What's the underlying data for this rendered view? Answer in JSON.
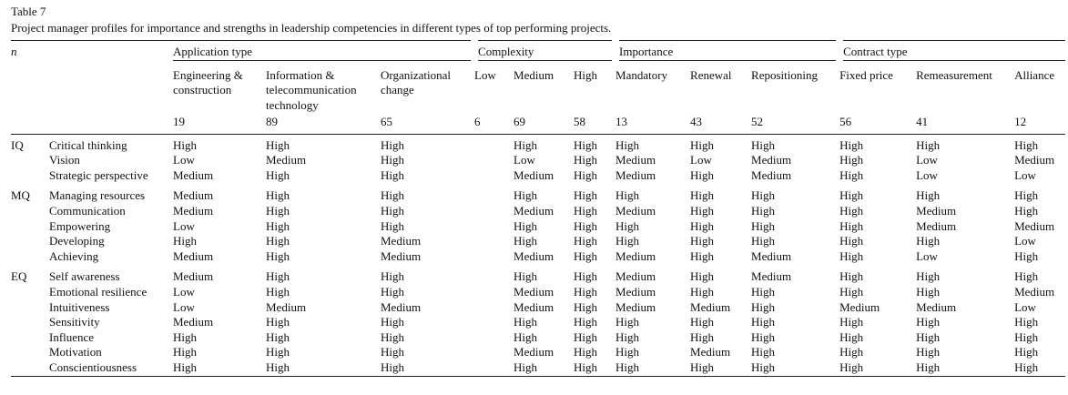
{
  "table_label": "Table 7",
  "caption": "Project manager profiles for importance and strengths in leadership competencies in different types of top performing projects.",
  "n_label": "n",
  "groups": [
    {
      "label": "Application type",
      "columns": [
        {
          "label": "Engineering & construction",
          "n": "19"
        },
        {
          "label": "Information & telecommunication technology",
          "n": "89"
        },
        {
          "label": "Organizational change",
          "n": "65"
        }
      ]
    },
    {
      "label": "Complexity",
      "columns": [
        {
          "label": "Low",
          "n": "6"
        },
        {
          "label": "Medium",
          "n": "69"
        },
        {
          "label": "High",
          "n": "58"
        }
      ]
    },
    {
      "label": "Importance",
      "columns": [
        {
          "label": "Mandatory",
          "n": "13"
        },
        {
          "label": "Renewal",
          "n": "43"
        },
        {
          "label": "Repositioning",
          "n": "52"
        }
      ]
    },
    {
      "label": "Contract type",
      "columns": [
        {
          "label": "Fixed price",
          "n": "56"
        },
        {
          "label": "Remeasurement",
          "n": "41"
        },
        {
          "label": "Alliance",
          "n": "12"
        }
      ]
    }
  ],
  "sections": [
    {
      "label": "IQ",
      "rows": [
        {
          "competency": "Critical thinking",
          "values": [
            "High",
            "High",
            "High",
            "",
            "High",
            "High",
            "High",
            "High",
            "High",
            "High",
            "High",
            "High"
          ]
        },
        {
          "competency": "Vision",
          "values": [
            "Low",
            "Medium",
            "High",
            "",
            "Low",
            "High",
            "Medium",
            "Low",
            "Medium",
            "High",
            "Low",
            "Medium"
          ]
        },
        {
          "competency": "Strategic perspective",
          "values": [
            "Medium",
            "High",
            "High",
            "",
            "Medium",
            "High",
            "Medium",
            "High",
            "Medium",
            "High",
            "Low",
            "Low"
          ]
        }
      ]
    },
    {
      "label": "MQ",
      "rows": [
        {
          "competency": "Managing resources",
          "values": [
            "Medium",
            "High",
            "High",
            "",
            "High",
            "High",
            "High",
            "High",
            "High",
            "High",
            "High",
            "High"
          ]
        },
        {
          "competency": "Communication",
          "values": [
            "Medium",
            "High",
            "High",
            "",
            "Medium",
            "High",
            "Medium",
            "High",
            "High",
            "High",
            "Medium",
            "High"
          ]
        },
        {
          "competency": "Empowering",
          "values": [
            "Low",
            "High",
            "High",
            "",
            "High",
            "High",
            "High",
            "High",
            "High",
            "High",
            "Medium",
            "Medium"
          ]
        },
        {
          "competency": "Developing",
          "values": [
            "High",
            "High",
            "Medium",
            "",
            "High",
            "High",
            "High",
            "High",
            "High",
            "High",
            "High",
            "Low"
          ]
        },
        {
          "competency": "Achieving",
          "values": [
            "Medium",
            "High",
            "Medium",
            "",
            "Medium",
            "High",
            "Medium",
            "High",
            "Medium",
            "High",
            "Low",
            "High"
          ]
        }
      ]
    },
    {
      "label": "EQ",
      "rows": [
        {
          "competency": "Self awareness",
          "values": [
            "Medium",
            "High",
            "High",
            "",
            "High",
            "High",
            "Medium",
            "High",
            "Medium",
            "High",
            "High",
            "High"
          ]
        },
        {
          "competency": "Emotional resilience",
          "values": [
            "Low",
            "High",
            "High",
            "",
            "Medium",
            "High",
            "Medium",
            "High",
            "High",
            "High",
            "High",
            "Medium"
          ]
        },
        {
          "competency": "Intuitiveness",
          "values": [
            "Low",
            "Medium",
            "Medium",
            "",
            "Medium",
            "High",
            "Medium",
            "Medium",
            "High",
            "Medium",
            "Medium",
            "Low"
          ]
        },
        {
          "competency": "Sensitivity",
          "values": [
            "Medium",
            "High",
            "High",
            "",
            "High",
            "High",
            "High",
            "High",
            "High",
            "High",
            "High",
            "High"
          ]
        },
        {
          "competency": "Influence",
          "values": [
            "High",
            "High",
            "High",
            "",
            "High",
            "High",
            "High",
            "High",
            "High",
            "High",
            "High",
            "High"
          ]
        },
        {
          "competency": "Motivation",
          "values": [
            "High",
            "High",
            "High",
            "",
            "Medium",
            "High",
            "High",
            "Medium",
            "High",
            "High",
            "High",
            "High"
          ]
        },
        {
          "competency": "Conscientiousness",
          "values": [
            "High",
            "High",
            "High",
            "",
            "High",
            "High",
            "High",
            "High",
            "High",
            "High",
            "High",
            "High"
          ]
        }
      ]
    }
  ]
}
